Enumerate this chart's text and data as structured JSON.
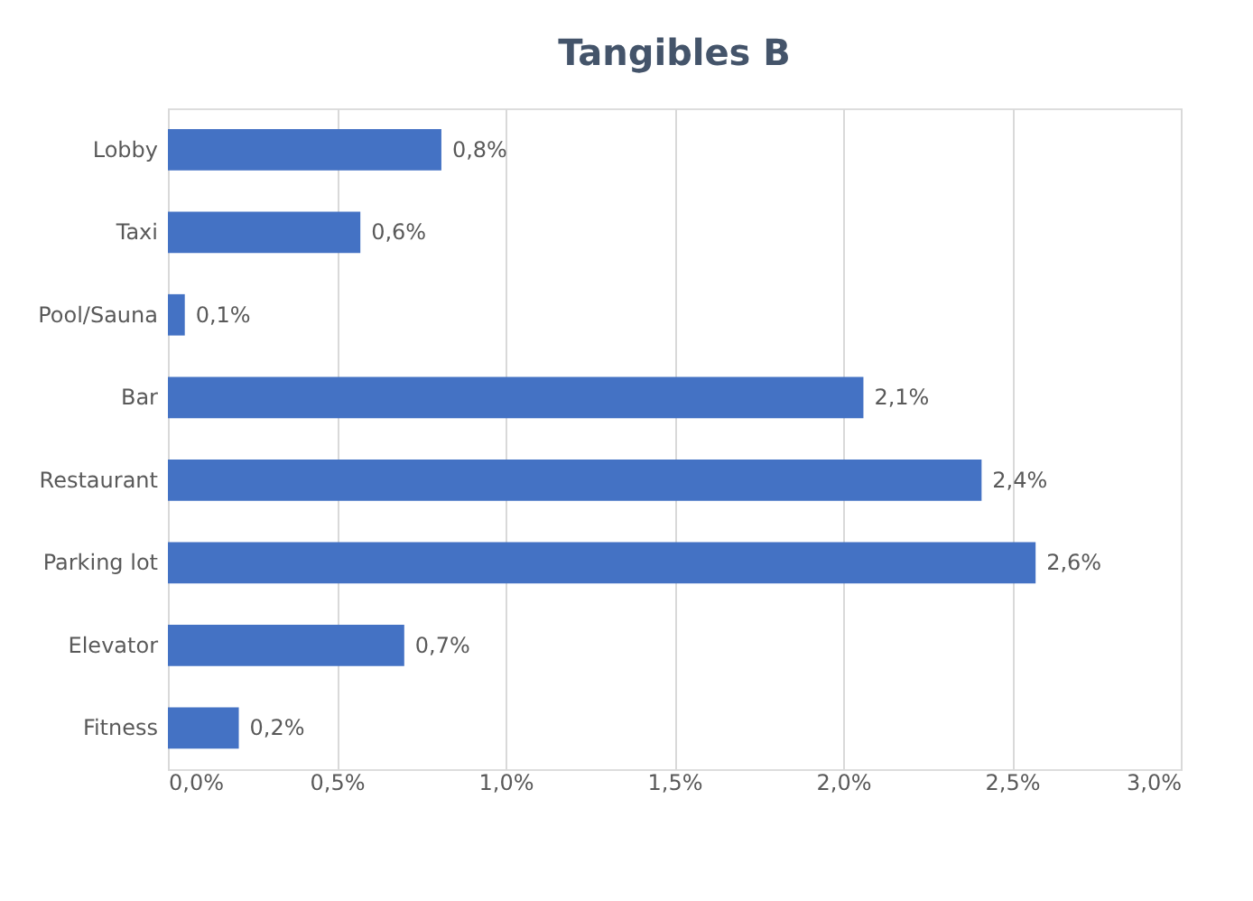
{
  "chart_data": {
    "type": "bar",
    "orientation": "horizontal",
    "title": "Tangibles B",
    "categories": [
      "Lobby",
      "Taxi",
      "Pool/Sauna",
      "Bar",
      "Restaurant",
      "Parking lot",
      "Elevator",
      "Fitness"
    ],
    "values": [
      0.81,
      0.57,
      0.05,
      2.06,
      2.41,
      2.57,
      0.7,
      0.21
    ],
    "value_labels": [
      "0,8%",
      "0,6%",
      "0,1%",
      "2,1%",
      "2,4%",
      "2,6%",
      "0,7%",
      "0,2%"
    ],
    "color": "#4472c4",
    "xlim": [
      0,
      3
    ],
    "xticks": [
      {
        "value": 0,
        "label": "0,0%"
      },
      {
        "value": 0.5,
        "label": "0,5%"
      },
      {
        "value": 1,
        "label": "1,0%"
      },
      {
        "value": 1.5,
        "label": "1,5%"
      },
      {
        "value": 2,
        "label": "2,0%"
      },
      {
        "value": 2.5,
        "label": "2,5%"
      },
      {
        "value": 3,
        "label": "3,0%"
      }
    ],
    "grid": "x"
  }
}
